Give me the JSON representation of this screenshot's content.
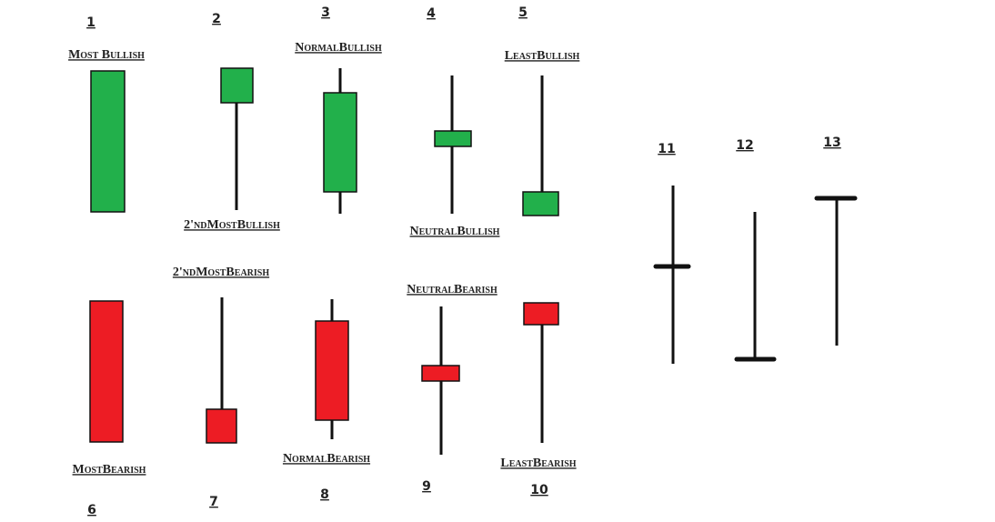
{
  "candles": [
    {
      "number": "1",
      "label": "Most Bullish"
    },
    {
      "number": "2",
      "label": "2'ndMostBullish"
    },
    {
      "number": "3",
      "label": "NormalBullish"
    },
    {
      "number": "4",
      "label": "NeutralBullish"
    },
    {
      "number": "5",
      "label": "LeastBullish"
    },
    {
      "number": "6",
      "label": "MostBearish"
    },
    {
      "number": "7",
      "label": "2'ndMostBearish"
    },
    {
      "number": "8",
      "label": "NormalBearish"
    },
    {
      "number": "9",
      "label": "NeutralBearish"
    },
    {
      "number": "10",
      "label": "LeastBearish"
    }
  ],
  "doji": [
    {
      "number": "11"
    },
    {
      "number": "12"
    },
    {
      "number": "13"
    }
  ]
}
